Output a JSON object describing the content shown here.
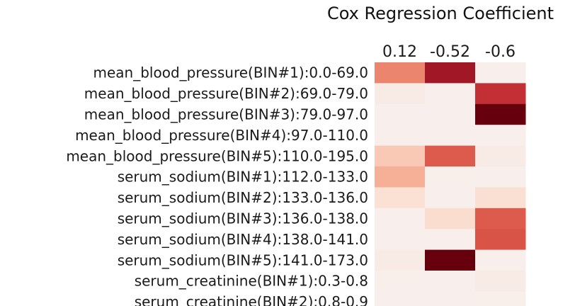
{
  "chart_data": {
    "type": "heatmap",
    "title": "Cox Regression Coefficient",
    "columns": [
      "0.12",
      "-0.52",
      "-0.6"
    ],
    "rows": [
      "mean_blood_pressure(BIN#1):0.0-69.0",
      "mean_blood_pressure(BIN#2):69.0-79.0",
      "mean_blood_pressure(BIN#3):79.0-97.0",
      "mean_blood_pressure(BIN#4):97.0-110.0",
      "mean_blood_pressure(BIN#5):110.0-195.0",
      "serum_sodium(BIN#1):112.0-133.0",
      "serum_sodium(BIN#2):133.0-136.0",
      "serum_sodium(BIN#3):136.0-138.0",
      "serum_sodium(BIN#4):138.0-141.0",
      "serum_sodium(BIN#5):141.0-173.0",
      "serum_creatinine(BIN#1):0.3-0.8",
      "serum_creatinine(BIN#2):0.8-0.9"
    ],
    "values": [
      [
        0.45,
        0.85,
        0.03
      ],
      [
        0.06,
        0.03,
        0.72
      ],
      [
        0.03,
        0.03,
        1.0
      ],
      [
        0.03,
        0.03,
        0.03
      ],
      [
        0.25,
        0.55,
        0.06
      ],
      [
        0.33,
        0.04,
        0.03
      ],
      [
        0.14,
        0.03,
        0.15
      ],
      [
        0.03,
        0.17,
        0.55
      ],
      [
        0.03,
        0.03,
        0.57
      ],
      [
        0.06,
        1.0,
        0.03
      ],
      [
        0.04,
        0.03,
        0.06
      ],
      [
        0.03,
        0.03,
        0.04
      ]
    ],
    "value_range": [
      0,
      1
    ],
    "colormap": [
      "#f7f3f3",
      "#fbd9c7",
      "#f29a7d",
      "#d6463d",
      "#b51f2e",
      "#67000d"
    ],
    "grid": false,
    "legend": "none"
  }
}
